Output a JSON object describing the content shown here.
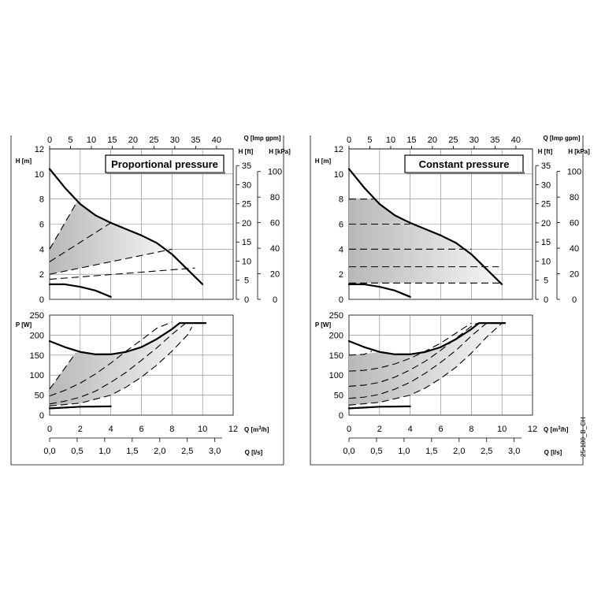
{
  "axes": {
    "q_imp": {
      "label": "Q [Imp gpm]",
      "ticks": [
        "0",
        "5",
        "10",
        "15",
        "20",
        "25",
        "30",
        "35",
        "40"
      ]
    },
    "h_m": {
      "label": "H [m]",
      "ticks": [
        "0",
        "2",
        "4",
        "6",
        "8",
        "10",
        "12"
      ]
    },
    "h_ft": {
      "label": "H [ft]",
      "ticks": [
        "0",
        "5",
        "10",
        "15",
        "20",
        "25",
        "30",
        "35"
      ]
    },
    "h_kpa": {
      "label": "H [kPa]",
      "ticks": [
        "0",
        "20",
        "40",
        "60",
        "80",
        "100"
      ]
    },
    "p_w": {
      "label": "P [W]",
      "ticks": [
        "0",
        "50",
        "100",
        "150",
        "200",
        "250"
      ]
    },
    "q_m3h": {
      "label_prefix": "Q [m",
      "label_sup": "3",
      "label_suffix": "/h]",
      "ticks": [
        "0",
        "2",
        "4",
        "6",
        "8",
        "10",
        "12"
      ]
    },
    "q_ls": {
      "label": "Q [l/s]",
      "ticks": [
        "0,0",
        "0,5",
        "1,0",
        "1,5",
        "2,0",
        "2,5",
        "3,0"
      ]
    }
  },
  "figure_code": "25-100_B_CH",
  "chart_data": [
    {
      "type": "line",
      "title": "Proportional pressure",
      "xlabel": "Q [m³/h]",
      "ylabel": "H [m]",
      "xlim": [
        0,
        12
      ],
      "ylim": [
        0,
        12
      ],
      "series": [
        {
          "values": [
            [
              0,
              10.4
            ],
            [
              1,
              8.9
            ],
            [
              2,
              7.6
            ],
            [
              3,
              6.7
            ],
            [
              4,
              6.1
            ],
            [
              5,
              5.6
            ],
            [
              6,
              5.1
            ],
            [
              7,
              4.5
            ],
            [
              8,
              3.6
            ],
            [
              9,
              2.4
            ],
            [
              10,
              1.2
            ]
          ]
        },
        {
          "values": [
            [
              0,
              1.2
            ],
            [
              1,
              1.2
            ],
            [
              2,
              1.0
            ],
            [
              3,
              0.7
            ],
            [
              4,
              0.2
            ]
          ]
        },
        {
          "values": [
            [
              0,
              4.0
            ],
            [
              1.8,
              7.8
            ]
          ]
        },
        {
          "values": [
            [
              0,
              3.0
            ],
            [
              4,
              6.1
            ]
          ]
        },
        {
          "values": [
            [
              0,
              2.0
            ],
            [
              8,
              4.0
            ]
          ]
        },
        {
          "values": [
            [
              0,
              1.6
            ],
            [
              9.5,
              2.5
            ]
          ]
        }
      ],
      "shaded_region": true
    },
    {
      "type": "line",
      "xlabel": "Q [m³/h]",
      "ylabel": "P [W]",
      "xlim": [
        0,
        12
      ],
      "ylim": [
        0,
        250
      ],
      "series": [
        {
          "values": [
            [
              0,
              185
            ],
            [
              1,
              170
            ],
            [
              2,
              158
            ],
            [
              3,
              152
            ],
            [
              4,
              152
            ],
            [
              5,
              158
            ],
            [
              6,
              170
            ],
            [
              7,
              190
            ],
            [
              8,
              215
            ],
            [
              8.5,
              230
            ],
            [
              10.2,
              230
            ]
          ]
        },
        {
          "values": [
            [
              0,
              17
            ],
            [
              1,
              19
            ],
            [
              2,
              21
            ],
            [
              4,
              22
            ]
          ]
        },
        {
          "values": [
            [
              0,
              65
            ],
            [
              1.7,
              155
            ]
          ]
        },
        {
          "values": [
            [
              0,
              48
            ],
            [
              1,
              62
            ],
            [
              2,
              80
            ],
            [
              3,
              103
            ],
            [
              4,
              130
            ],
            [
              5,
              160
            ],
            [
              6,
              188
            ],
            [
              7,
              217
            ],
            [
              8,
              233
            ]
          ]
        },
        {
          "values": [
            [
              0,
              28
            ],
            [
              1,
              35
            ],
            [
              2,
              45
            ],
            [
              3,
              60
            ],
            [
              4,
              82
            ],
            [
              5,
              107
            ],
            [
              6,
              137
            ],
            [
              7,
              168
            ],
            [
              8,
              202
            ],
            [
              8.9,
              230
            ]
          ]
        },
        {
          "values": [
            [
              0,
              23
            ],
            [
              2,
              30
            ],
            [
              4,
              50
            ],
            [
              5,
              70
            ],
            [
              6,
              95
            ],
            [
              7,
              125
            ],
            [
              8,
              160
            ],
            [
              9,
              200
            ],
            [
              9.3,
              220
            ]
          ]
        }
      ],
      "shaded_region": true
    },
    {
      "type": "line",
      "title": "Constant pressure",
      "xlabel": "Q [m³/h]",
      "ylabel": "H [m]",
      "xlim": [
        0,
        12
      ],
      "ylim": [
        0,
        12
      ],
      "series": [
        {
          "values": [
            [
              0,
              10.4
            ],
            [
              1,
              8.9
            ],
            [
              2,
              7.6
            ],
            [
              3,
              6.7
            ],
            [
              4,
              6.1
            ],
            [
              5,
              5.6
            ],
            [
              6,
              5.1
            ],
            [
              7,
              4.5
            ],
            [
              8,
              3.6
            ],
            [
              9,
              2.4
            ],
            [
              10,
              1.2
            ]
          ]
        },
        {
          "values": [
            [
              0,
              1.2
            ],
            [
              1,
              1.2
            ],
            [
              2,
              1.0
            ],
            [
              3,
              0.7
            ],
            [
              4,
              0.2
            ]
          ]
        },
        {
          "values": [
            [
              0,
              8.0
            ],
            [
              1.6,
              8.0
            ]
          ]
        },
        {
          "values": [
            [
              0,
              6.0
            ],
            [
              4,
              6.0
            ]
          ]
        },
        {
          "values": [
            [
              0,
              4.0
            ],
            [
              8,
              4.0
            ]
          ]
        },
        {
          "values": [
            [
              0,
              2.6
            ],
            [
              9.8,
              2.6
            ]
          ]
        },
        {
          "values": [
            [
              0,
              1.3
            ],
            [
              10,
              1.3
            ]
          ]
        }
      ],
      "shaded_region": true
    },
    {
      "type": "line",
      "xlabel": "Q [m³/h]",
      "ylabel": "P [W]",
      "xlim": [
        0,
        12
      ],
      "ylim": [
        0,
        250
      ],
      "series": [
        {
          "values": [
            [
              0,
              185
            ],
            [
              1,
              170
            ],
            [
              2,
              158
            ],
            [
              3,
              152
            ],
            [
              4,
              152
            ],
            [
              5,
              158
            ],
            [
              6,
              170
            ],
            [
              7,
              190
            ],
            [
              8,
              215
            ],
            [
              8.5,
              230
            ],
            [
              10.2,
              230
            ]
          ]
        },
        {
          "values": [
            [
              0,
              17
            ],
            [
              1,
              19
            ],
            [
              2,
              21
            ],
            [
              4,
              22
            ]
          ]
        },
        {
          "values": [
            [
              0,
              150
            ],
            [
              1,
              152
            ],
            [
              1.5,
              160
            ]
          ]
        },
        {
          "values": [
            [
              0,
              110
            ],
            [
              1,
              112
            ],
            [
              2,
              118
            ],
            [
              3,
              128
            ],
            [
              4,
              142
            ],
            [
              5,
              160
            ],
            [
              6,
              180
            ],
            [
              7,
              205
            ],
            [
              8,
              230
            ]
          ]
        },
        {
          "values": [
            [
              0,
              72
            ],
            [
              1,
              75
            ],
            [
              2,
              82
            ],
            [
              3,
              95
            ],
            [
              4,
              113
            ],
            [
              5,
              135
            ],
            [
              6,
              162
            ],
            [
              7,
              192
            ],
            [
              8,
              222
            ],
            [
              8.4,
              230
            ]
          ]
        },
        {
          "values": [
            [
              0,
              42
            ],
            [
              1,
              45
            ],
            [
              2,
              52
            ],
            [
              3,
              65
            ],
            [
              4,
              82
            ],
            [
              5,
              105
            ],
            [
              6,
              132
            ],
            [
              7,
              162
            ],
            [
              8,
              198
            ],
            [
              9,
              230
            ]
          ]
        },
        {
          "values": [
            [
              0,
              25
            ],
            [
              2,
              32
            ],
            [
              4,
              50
            ],
            [
              5,
              68
            ],
            [
              6,
              92
            ],
            [
              7,
              120
            ],
            [
              8,
              155
            ],
            [
              9,
              195
            ],
            [
              10,
              230
            ]
          ]
        }
      ],
      "shaded_region": true
    }
  ]
}
